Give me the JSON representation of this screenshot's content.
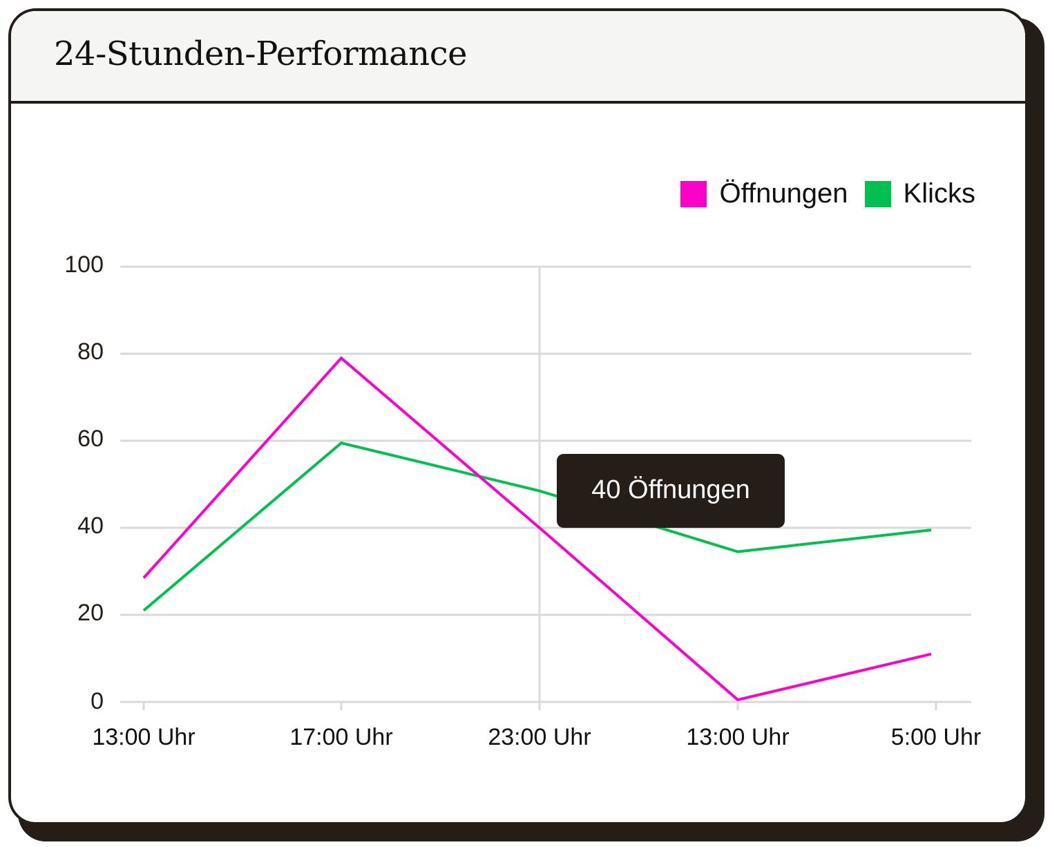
{
  "card": {
    "title": "24-Stunden-Performance"
  },
  "legend": {
    "items": [
      {
        "label": "Öffnungen",
        "color": "#ff00c8"
      },
      {
        "label": "Klicks",
        "color": "#00c050"
      }
    ]
  },
  "axes": {
    "y_ticks": [
      "100",
      "80",
      "60",
      "40",
      "20",
      "0"
    ],
    "x_ticks": [
      "13:00 Uhr",
      "17:00 Uhr",
      "23:00 Uhr",
      "13:00 Uhr",
      "5:00 Uhr"
    ]
  },
  "tooltip": {
    "text": "40 Öffnungen"
  },
  "colors": {
    "frame": "#241d18",
    "header_bg": "#f5f5f3",
    "grid": "#d9d9d9",
    "opens": "#ff00c8",
    "clicks": "#00c050"
  },
  "chart_data": {
    "type": "line",
    "title": "24-Stunden-Performance",
    "xlabel": "",
    "ylabel": "",
    "categories": [
      "13:00 Uhr",
      "17:00 Uhr",
      "23:00 Uhr",
      "13:00 Uhr",
      "5:00 Uhr"
    ],
    "series": [
      {
        "name": "Öffnungen",
        "color": "#ff00c8",
        "values": [
          28.5,
          79,
          40,
          0.5,
          11
        ]
      },
      {
        "name": "Klicks",
        "color": "#00c050",
        "values": [
          21,
          59.5,
          48.5,
          34.5,
          39.5
        ]
      }
    ],
    "ylim": [
      0,
      100
    ],
    "y_ticks": [
      0,
      20,
      40,
      60,
      80,
      100
    ],
    "grid": "horizontal",
    "legend_position": "top-right",
    "annotations": [
      {
        "category_index": 2,
        "series": "Öffnungen",
        "text": "40 Öffnungen",
        "type": "tooltip"
      }
    ],
    "crosshair_category_index": 2
  }
}
